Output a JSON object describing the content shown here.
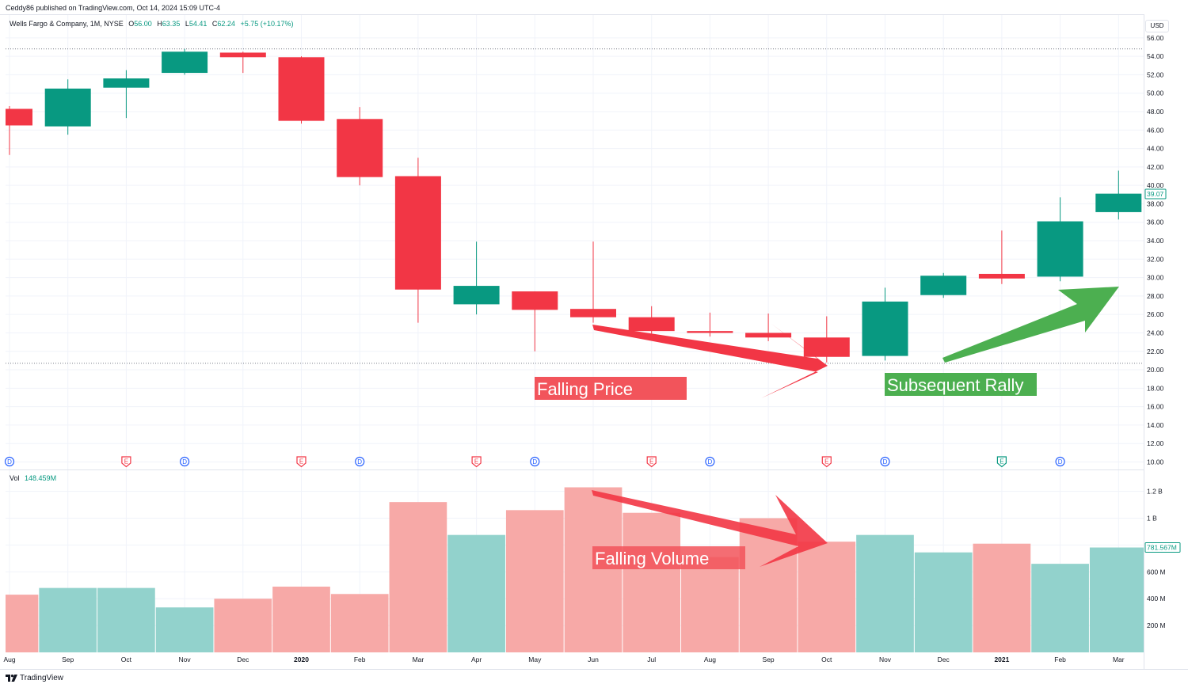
{
  "header": {
    "publish_line": "Ceddy86 published on TradingView.com, Oct 14, 2024 15:09 UTC-4",
    "symbol": "Wells Fargo & Company, 1M, NYSE",
    "o_label": "O",
    "o": "56.00",
    "h_label": "H",
    "h": "63.35",
    "l_label": "L",
    "l": "54.41",
    "c_label": "C",
    "c": "62.24",
    "change": "+5.75 (+10.17%)",
    "currency": "USD"
  },
  "volume_legend": {
    "label": "Vol",
    "value": "148.459M"
  },
  "brand": {
    "name": "TradingView",
    "icon": "tradingview-logo-icon"
  },
  "annotations": {
    "falling_price": "Falling Price",
    "subsequent_rally": "Subsequent Rally",
    "falling_volume": "Falling Volume"
  },
  "colors": {
    "up": "#089981",
    "down": "#f23645",
    "vol_up": "#92d2cc",
    "vol_down": "#f7a9a7",
    "arrow_red": "#f23645",
    "arrow_green": "#4caf50",
    "label_red": "#f2545b",
    "label_green": "#4caf50",
    "event_d": "#2962ff",
    "event_e_red": "#f23645",
    "event_e_green": "#089981"
  },
  "chart_data": [
    {
      "type": "candlestick",
      "title": "Wells Fargo & Company, 1M, NYSE",
      "ylim": [
        10,
        56
      ],
      "price_ticks": [
        "56.00",
        "54.00",
        "52.00",
        "50.00",
        "48.00",
        "46.00",
        "44.00",
        "42.00",
        "40.00",
        "38.00",
        "36.00",
        "34.00",
        "32.00",
        "30.00",
        "28.00",
        "26.00",
        "24.00",
        "22.00",
        "20.00",
        "18.00",
        "16.00",
        "14.00",
        "12.00",
        "10.00"
      ],
      "last_price_label": "39.07",
      "last_price": 39.07,
      "reference_lines": [
        54.8,
        20.7
      ],
      "categories": [
        "Aug",
        "Sep",
        "Oct",
        "Nov",
        "Dec",
        "2020",
        "Feb",
        "Mar",
        "Apr",
        "May",
        "Jun",
        "Jul",
        "Aug",
        "Sep",
        "Oct",
        "Nov",
        "Dec",
        "2021",
        "Feb",
        "Mar"
      ],
      "bold_categories": [
        "2020",
        "2021"
      ],
      "candles": [
        {
          "o": 48.3,
          "h": 48.6,
          "l": 43.3,
          "c": 46.5
        },
        {
          "o": 46.4,
          "h": 51.5,
          "l": 45.5,
          "c": 50.5
        },
        {
          "o": 50.6,
          "h": 52.5,
          "l": 47.3,
          "c": 51.6
        },
        {
          "o": 52.2,
          "h": 54.8,
          "l": 52.0,
          "c": 54.5
        },
        {
          "o": 54.4,
          "h": 54.5,
          "l": 52.2,
          "c": 53.9
        },
        {
          "o": 53.9,
          "h": 54.0,
          "l": 46.7,
          "c": 47.0
        },
        {
          "o": 47.2,
          "h": 48.5,
          "l": 40.0,
          "c": 40.9
        },
        {
          "o": 41.0,
          "h": 43.0,
          "l": 25.1,
          "c": 28.7
        },
        {
          "o": 27.1,
          "h": 33.9,
          "l": 26.0,
          "c": 29.1
        },
        {
          "o": 28.5,
          "h": 28.5,
          "l": 22.0,
          "c": 26.5
        },
        {
          "o": 26.6,
          "h": 33.9,
          "l": 25.1,
          "c": 25.7
        },
        {
          "o": 25.7,
          "h": 26.9,
          "l": 23.9,
          "c": 24.2
        },
        {
          "o": 24.2,
          "h": 26.2,
          "l": 23.6,
          "c": 24.0
        },
        {
          "o": 24.0,
          "h": 26.1,
          "l": 23.1,
          "c": 23.5
        },
        {
          "o": 23.5,
          "h": 25.8,
          "l": 20.8,
          "c": 21.4
        },
        {
          "o": 21.5,
          "h": 28.9,
          "l": 21.0,
          "c": 27.4
        },
        {
          "o": 28.1,
          "h": 30.5,
          "l": 27.8,
          "c": 30.2
        },
        {
          "o": 30.4,
          "h": 35.1,
          "l": 29.3,
          "c": 29.9
        },
        {
          "o": 30.1,
          "h": 38.7,
          "l": 29.6,
          "c": 36.1
        },
        {
          "o": 37.1,
          "h": 41.6,
          "l": 36.3,
          "c": 39.1
        }
      ],
      "events": [
        {
          "type": "D",
          "category": "Aug"
        },
        {
          "type": "E",
          "category": "Oct"
        },
        {
          "type": "D",
          "category": "Nov"
        },
        {
          "type": "E",
          "category": "2020"
        },
        {
          "type": "D",
          "category": "Feb"
        },
        {
          "type": "E",
          "category": "Apr"
        },
        {
          "type": "D",
          "category": "May"
        },
        {
          "type": "E",
          "category": "Jul"
        },
        {
          "type": "D",
          "category": "Aug"
        },
        {
          "type": "E",
          "category": "Oct"
        },
        {
          "type": "D",
          "category": "Nov"
        },
        {
          "type": "E",
          "category": "2021",
          "color": "green"
        },
        {
          "type": "D",
          "category": "Feb"
        }
      ]
    },
    {
      "type": "bar",
      "title": "Vol",
      "categories": [
        "Aug",
        "Sep",
        "Oct",
        "Nov",
        "Dec",
        "2020",
        "Feb",
        "Mar",
        "Apr",
        "May",
        "Jun",
        "Jul",
        "Aug",
        "Sep",
        "Oct",
        "Nov",
        "Dec",
        "2021",
        "Feb",
        "Mar"
      ],
      "ylim": [
        0,
        1300000000
      ],
      "volume_ticks": [
        {
          "label": "1.2 B",
          "value": 1200000000
        },
        {
          "label": "1 B",
          "value": 1000000000
        },
        {
          "label": "600 M",
          "value": 600000000
        },
        {
          "label": "400 M",
          "value": 400000000
        },
        {
          "label": "200 M",
          "value": 200000000
        }
      ],
      "last_volume_label": "781.567M",
      "last_volume": 781567000,
      "values": [
        430000000,
        480000000,
        480000000,
        335000000,
        400000000,
        490000000,
        435000000,
        1120000000,
        875000000,
        1060000000,
        1230000000,
        1040000000,
        710000000,
        1000000000,
        825000000,
        875000000,
        745000000,
        810000000,
        660000000,
        781567000
      ],
      "direction": [
        "down",
        "up",
        "up",
        "up",
        "down",
        "down",
        "down",
        "down",
        "up",
        "down",
        "down",
        "down",
        "down",
        "down",
        "down",
        "up",
        "up",
        "down",
        "up",
        "up"
      ]
    }
  ]
}
